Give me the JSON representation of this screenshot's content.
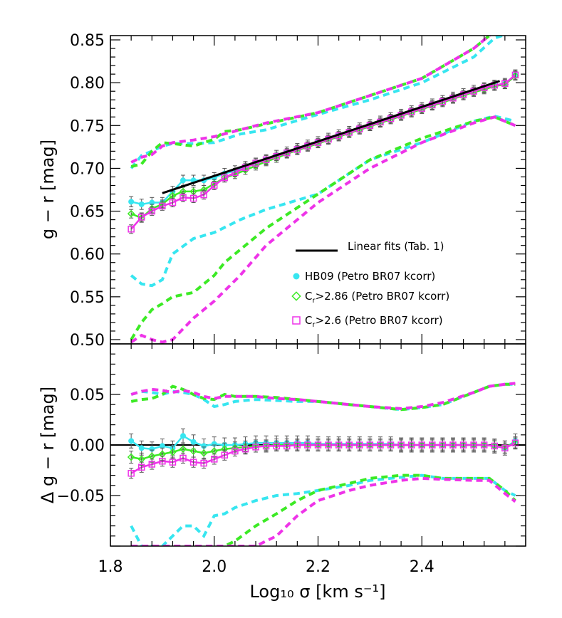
{
  "colors": {
    "cyan": "#37e6f0",
    "green": "#3cea25",
    "magenta": "#ee33e8",
    "fit": "#000000",
    "errorbar": "#555555"
  },
  "legend": {
    "placement": "middle-right of top panel",
    "fit_label": "Linear fits (Tab. 1)",
    "entries": [
      {
        "symbol": "filled-circle",
        "color": "cyan",
        "text": "HB09 (Petro BR07 kcorr)"
      },
      {
        "symbol": "open-diamond",
        "color": "green",
        "text_main": "C",
        "text_sub": "r",
        "text_rest": ">2.86 (Petro BR07 kcorr)"
      },
      {
        "symbol": "open-square",
        "color": "magenta",
        "text_main": "C",
        "text_sub": "r",
        "text_rest": ">2.6 (Petro BR07 kcorr)"
      }
    ]
  },
  "chart_data": [
    {
      "type": "line",
      "panel": "top",
      "ylabel": "g − r [mag]",
      "ylim": [
        0.495,
        0.855
      ],
      "xlim": [
        1.8,
        2.6
      ],
      "yticks": [
        "0.50",
        "0.55",
        "0.60",
        "0.65",
        "0.70",
        "0.75",
        "0.80",
        "0.85"
      ],
      "ytick_values": [
        0.5,
        0.55,
        0.6,
        0.65,
        0.7,
        0.75,
        0.8,
        0.85
      ],
      "x": [
        1.84,
        1.86,
        1.88,
        1.9,
        1.92,
        1.94,
        1.96,
        1.98,
        2.0,
        2.02,
        2.04,
        2.06,
        2.08,
        2.1,
        2.12,
        2.14,
        2.16,
        2.18,
        2.2,
        2.22,
        2.24,
        2.26,
        2.28,
        2.3,
        2.32,
        2.34,
        2.36,
        2.38,
        2.4,
        2.42,
        2.44,
        2.46,
        2.48,
        2.5,
        2.52,
        2.54,
        2.56,
        2.58
      ],
      "series": [
        {
          "name": "HB09 (Petro BR07 kcorr)",
          "color": "cyan",
          "marker": "filled-circle",
          "err": 0.006,
          "values": [
            0.661,
            0.658,
            0.66,
            0.66,
            0.673,
            0.686,
            0.686,
            0.686,
            0.689,
            0.694,
            0.697,
            0.702,
            0.706,
            0.71,
            0.715,
            0.719,
            0.723,
            0.727,
            0.731,
            0.735,
            0.739,
            0.743,
            0.747,
            0.751,
            0.755,
            0.759,
            0.763,
            0.767,
            0.771,
            0.775,
            0.779,
            0.783,
            0.787,
            0.791,
            0.794,
            0.797,
            0.799,
            0.809
          ]
        },
        {
          "name": "Cr>2.86 (Petro BR07 kcorr)",
          "color": "green",
          "marker": "open-diamond",
          "err": 0.005,
          "values": [
            0.647,
            0.642,
            0.653,
            0.658,
            0.668,
            0.673,
            0.673,
            0.675,
            0.682,
            0.689,
            0.693,
            0.698,
            0.703,
            0.708,
            0.712,
            0.717,
            0.721,
            0.725,
            0.729,
            0.733,
            0.737,
            0.741,
            0.745,
            0.749,
            0.753,
            0.757,
            0.761,
            0.765,
            0.769,
            0.773,
            0.777,
            0.781,
            0.785,
            0.789,
            0.792,
            0.796,
            0.798,
            0.808
          ]
        },
        {
          "name": "Cr>2.6 (Petro BR07 kcorr)",
          "color": "magenta",
          "marker": "open-square",
          "err": 0.005,
          "values": [
            0.629,
            0.643,
            0.65,
            0.656,
            0.66,
            0.666,
            0.665,
            0.669,
            0.68,
            0.689,
            0.695,
            0.701,
            0.706,
            0.71,
            0.714,
            0.718,
            0.722,
            0.726,
            0.73,
            0.734,
            0.738,
            0.742,
            0.746,
            0.75,
            0.754,
            0.758,
            0.762,
            0.766,
            0.77,
            0.774,
            0.778,
            0.782,
            0.786,
            0.79,
            0.794,
            0.797,
            0.799,
            0.809
          ]
        }
      ],
      "bands": [
        {
          "color": "cyan",
          "x": [
            1.84,
            1.86,
            1.88,
            1.9,
            1.92,
            1.96,
            2.0,
            2.05,
            2.1,
            2.2,
            2.3,
            2.4,
            2.5,
            2.54,
            2.58
          ],
          "upper": [
            0.7,
            0.715,
            0.72,
            0.726,
            0.729,
            0.729,
            0.73,
            0.74,
            0.745,
            0.763,
            0.78,
            0.8,
            0.83,
            0.852,
            0.86
          ],
          "lower": [
            0.575,
            0.565,
            0.563,
            0.57,
            0.6,
            0.618,
            0.625,
            0.64,
            0.652,
            0.67,
            0.71,
            0.73,
            0.755,
            0.761,
            0.755
          ]
        },
        {
          "color": "green",
          "x": [
            1.84,
            1.86,
            1.88,
            1.9,
            1.92,
            1.96,
            2.0,
            2.02,
            2.05,
            2.1,
            2.2,
            2.3,
            2.4,
            2.5,
            2.54,
            2.58
          ],
          "upper": [
            0.702,
            0.705,
            0.72,
            0.73,
            0.729,
            0.726,
            0.734,
            0.743,
            0.745,
            0.752,
            0.765,
            0.785,
            0.805,
            0.84,
            0.86,
            0.86
          ],
          "lower": [
            0.5,
            0.52,
            0.535,
            0.542,
            0.55,
            0.555,
            0.575,
            0.59,
            0.605,
            0.63,
            0.67,
            0.71,
            0.735,
            0.755,
            0.76,
            0.75
          ]
        },
        {
          "color": "magenta",
          "x": [
            1.84,
            1.86,
            1.88,
            1.9,
            1.92,
            1.96,
            2.0,
            2.05,
            2.1,
            2.2,
            2.3,
            2.4,
            2.5,
            2.54,
            2.58
          ],
          "upper": [
            0.707,
            0.713,
            0.716,
            0.726,
            0.73,
            0.733,
            0.737,
            0.745,
            0.753,
            0.765,
            0.785,
            0.805,
            0.84,
            0.86,
            0.86
          ],
          "lower": [
            0.497,
            0.505,
            0.5,
            0.497,
            0.5,
            0.525,
            0.545,
            0.575,
            0.61,
            0.66,
            0.7,
            0.73,
            0.753,
            0.76,
            0.75
          ]
        }
      ],
      "fit": {
        "x": [
          1.9,
          2.55
        ],
        "y": [
          0.671,
          0.802
        ]
      }
    },
    {
      "type": "line",
      "panel": "bottom",
      "ylabel": "Δ g − r [mag]",
      "xlabel": "Log₁₀ σ [km s⁻¹]",
      "ylim": [
        -0.1,
        0.1
      ],
      "xlim": [
        1.8,
        2.6
      ],
      "yticks": [
        "0.05",
        "0.00",
        "−0.05"
      ],
      "ytick_values": [
        0.05,
        0.0,
        -0.05
      ],
      "xticks": [
        "1.8",
        "2.0",
        "2.2",
        "2.4"
      ],
      "xtick_values": [
        1.8,
        2.0,
        2.2,
        2.4
      ],
      "reference_line": 0.0,
      "x": [
        1.84,
        1.86,
        1.88,
        1.9,
        1.92,
        1.94,
        1.96,
        1.98,
        2.0,
        2.02,
        2.04,
        2.06,
        2.08,
        2.1,
        2.12,
        2.14,
        2.16,
        2.18,
        2.2,
        2.22,
        2.24,
        2.26,
        2.28,
        2.3,
        2.32,
        2.34,
        2.36,
        2.38,
        2.4,
        2.42,
        2.44,
        2.46,
        2.48,
        2.5,
        2.52,
        2.54,
        2.56,
        2.58
      ],
      "series": [
        {
          "name": "HB09 (Petro BR07 kcorr)",
          "color": "cyan",
          "marker": "filled-circle",
          "err": 0.007,
          "values": [
            0.004,
            -0.003,
            -0.004,
            -0.001,
            -0.003,
            0.009,
            0.003,
            -0.001,
            0.001,
            0.0,
            0.0,
            0.001,
            0.002,
            0.002,
            0.002,
            0.002,
            0.002,
            0.002,
            0.001,
            0.001,
            0.001,
            0.001,
            0.001,
            0.001,
            0.001,
            0.001,
            0.0,
            0.0,
            0.0,
            0.0,
            0.0,
            0.0,
            0.0,
            0.0,
            0.0,
            -0.001,
            -0.003,
            0.004
          ]
        },
        {
          "name": "Cr>2.86 (Petro BR07 kcorr)",
          "color": "green",
          "marker": "open-diamond",
          "err": 0.006,
          "values": [
            -0.012,
            -0.014,
            -0.011,
            -0.009,
            -0.007,
            -0.004,
            -0.006,
            -0.008,
            -0.006,
            -0.004,
            -0.003,
            -0.002,
            -0.001,
            -0.001,
            0.0,
            0.0,
            0.0,
            0.0,
            0.0,
            0.0,
            0.0,
            0.0,
            0.0,
            0.0,
            0.0,
            0.0,
            0.0,
            0.0,
            0.0,
            0.0,
            0.0,
            0.0,
            0.0,
            0.0,
            0.0,
            -0.001,
            -0.002,
            0.002
          ]
        },
        {
          "name": "Cr>2.6 (Petro BR07 kcorr)",
          "color": "magenta",
          "marker": "open-square",
          "err": 0.005,
          "values": [
            -0.028,
            -0.022,
            -0.019,
            -0.016,
            -0.017,
            -0.013,
            -0.017,
            -0.018,
            -0.014,
            -0.01,
            -0.006,
            -0.004,
            -0.002,
            -0.001,
            -0.001,
            -0.001,
            0.0,
            0.0,
            0.0,
            0.0,
            0.0,
            0.0,
            0.0,
            0.0,
            0.0,
            0.0,
            0.0,
            0.0,
            0.0,
            0.0,
            0.0,
            0.0,
            0.0,
            0.0,
            0.0,
            -0.001,
            -0.003,
            0.002
          ]
        }
      ],
      "bands": [
        {
          "color": "cyan",
          "x": [
            1.84,
            1.86,
            1.88,
            1.9,
            1.92,
            1.94,
            1.96,
            1.98,
            2.0,
            2.02,
            2.04,
            2.08,
            2.12,
            2.16,
            2.2,
            2.26,
            2.3,
            2.36,
            2.4,
            2.44,
            2.5,
            2.53,
            2.56,
            2.58
          ],
          "upper": [
            0.05,
            0.053,
            0.052,
            0.05,
            0.053,
            0.052,
            0.05,
            0.045,
            0.038,
            0.04,
            0.043,
            0.045,
            0.044,
            0.043,
            0.043,
            0.04,
            0.038,
            0.035,
            0.037,
            0.04,
            0.052,
            0.058,
            0.06,
            0.06
          ],
          "lower": [
            -0.08,
            -0.1,
            -0.1,
            -0.1,
            -0.09,
            -0.08,
            -0.08,
            -0.09,
            -0.07,
            -0.068,
            -0.062,
            -0.055,
            -0.05,
            -0.048,
            -0.045,
            -0.04,
            -0.035,
            -0.032,
            -0.03,
            -0.033,
            -0.033,
            -0.033,
            -0.045,
            -0.05
          ]
        },
        {
          "color": "green",
          "x": [
            1.84,
            1.86,
            1.88,
            1.9,
            1.92,
            1.94,
            1.96,
            1.98,
            2.0,
            2.02,
            2.04,
            2.08,
            2.12,
            2.16,
            2.2,
            2.26,
            2.3,
            2.36,
            2.4,
            2.44,
            2.5,
            2.53,
            2.56,
            2.58
          ],
          "upper": [
            0.043,
            0.045,
            0.046,
            0.05,
            0.058,
            0.055,
            0.05,
            0.046,
            0.045,
            0.05,
            0.048,
            0.048,
            0.047,
            0.045,
            0.043,
            0.04,
            0.038,
            0.035,
            0.037,
            0.04,
            0.052,
            0.058,
            0.06,
            0.06
          ],
          "lower": [
            -0.1,
            -0.1,
            -0.1,
            -0.1,
            -0.1,
            -0.1,
            -0.1,
            -0.1,
            -0.1,
            -0.1,
            -0.095,
            -0.08,
            -0.068,
            -0.055,
            -0.045,
            -0.038,
            -0.033,
            -0.03,
            -0.03,
            -0.033,
            -0.033,
            -0.033,
            -0.045,
            -0.055
          ]
        },
        {
          "color": "magenta",
          "x": [
            1.84,
            1.86,
            1.88,
            1.9,
            1.92,
            1.94,
            1.96,
            1.98,
            2.0,
            2.02,
            2.04,
            2.08,
            2.12,
            2.16,
            2.2,
            2.26,
            2.3,
            2.36,
            2.4,
            2.44,
            2.5,
            2.53,
            2.56,
            2.58
          ],
          "upper": [
            0.05,
            0.053,
            0.055,
            0.054,
            0.052,
            0.054,
            0.052,
            0.048,
            0.046,
            0.048,
            0.048,
            0.048,
            0.046,
            0.045,
            0.043,
            0.04,
            0.038,
            0.036,
            0.038,
            0.042,
            0.052,
            0.058,
            0.06,
            0.061
          ],
          "lower": [
            -0.1,
            -0.1,
            -0.1,
            -0.1,
            -0.1,
            -0.1,
            -0.1,
            -0.1,
            -0.1,
            -0.1,
            -0.1,
            -0.1,
            -0.09,
            -0.07,
            -0.055,
            -0.045,
            -0.04,
            -0.035,
            -0.033,
            -0.034,
            -0.035,
            -0.035,
            -0.048,
            -0.056
          ]
        }
      ]
    }
  ]
}
